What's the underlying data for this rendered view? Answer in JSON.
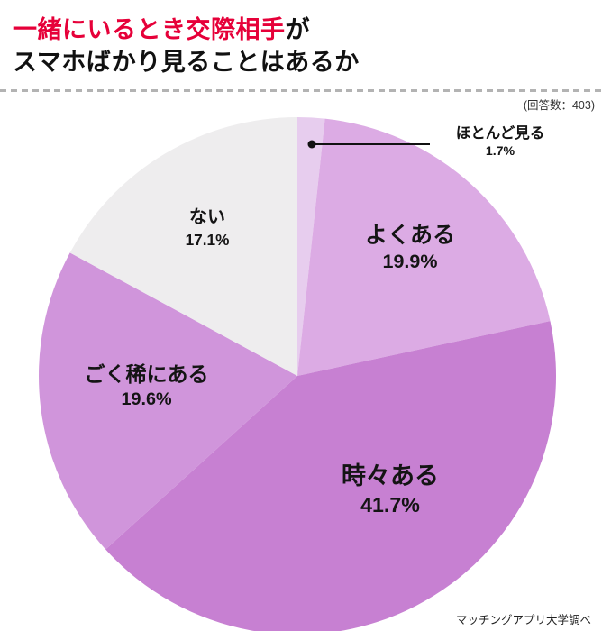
{
  "header": {
    "title_line1_red": "一緒にいるとき交際相手",
    "title_line1_black": "が",
    "title_line2": "スマホばかり見ることはあるか",
    "respondents": "(回答数：403)"
  },
  "chart_data": {
    "type": "pie",
    "title": "一緒にいるとき交際相手がスマホばかり見ることはあるか",
    "respondents": 403,
    "start_angle_deg": 0,
    "direction": "clockwise",
    "legend_position": "none",
    "segments": [
      {
        "label": "ほとんど見る",
        "value": 1.7,
        "pct_label": "1.7%",
        "color": "#e7cdee"
      },
      {
        "label": "よくある",
        "value": 19.9,
        "pct_label": "19.9%",
        "color": "#dcabe4"
      },
      {
        "label": "時々ある",
        "value": 41.7,
        "pct_label": "41.7%",
        "color": "#c780d2"
      },
      {
        "label": "ごく稀にある",
        "value": 19.6,
        "pct_label": "19.6%",
        "color": "#d095db"
      },
      {
        "label": "ない",
        "value": 17.1,
        "pct_label": "17.1%",
        "color": "#eeedee"
      }
    ]
  },
  "footer": {
    "source": "マッチングアプリ大学調べ"
  }
}
